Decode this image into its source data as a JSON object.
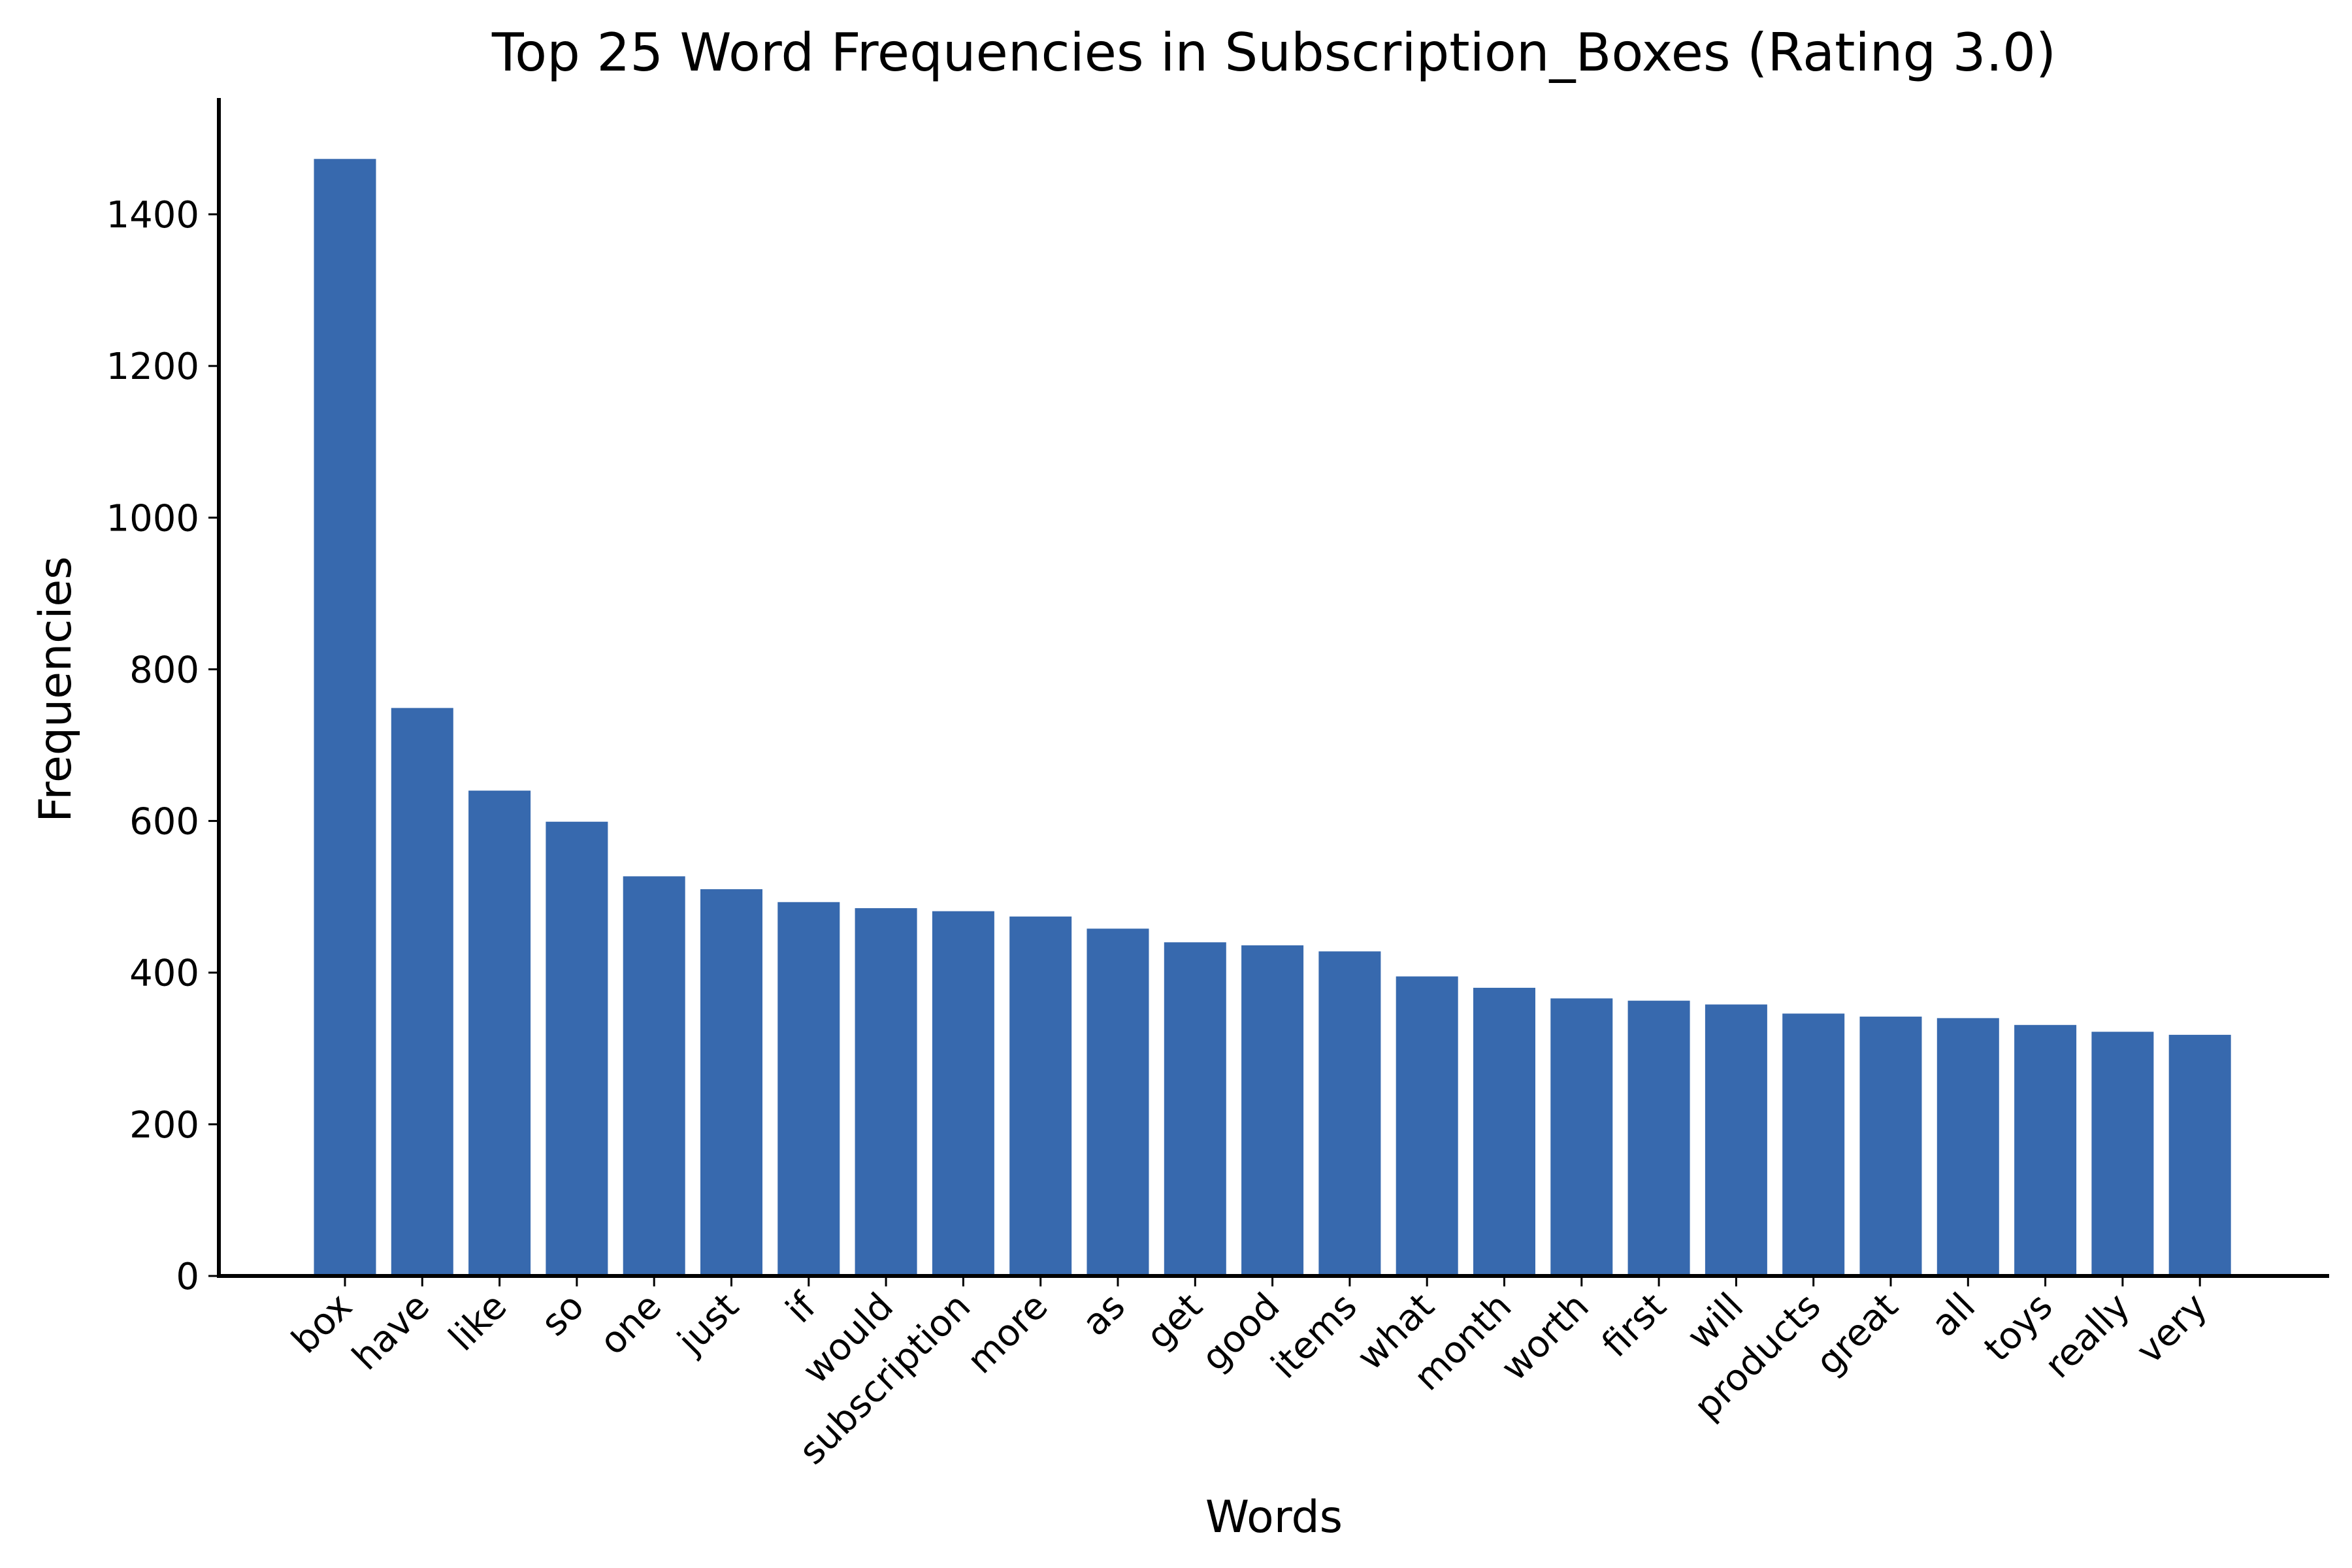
{
  "chart_data": {
    "type": "bar",
    "title": "Top 25 Word Frequencies in Subscription_Boxes (Rating 3.0)",
    "xlabel": "Words",
    "ylabel": "Frequencies",
    "categories": [
      "box",
      "have",
      "like",
      "so",
      "one",
      "just",
      "if",
      "would",
      "subscription",
      "more",
      "as",
      "get",
      "good",
      "items",
      "what",
      "month",
      "worth",
      "first",
      "will",
      "products",
      "great",
      "all",
      "toys",
      "really",
      "very"
    ],
    "values": [
      1473,
      749,
      640,
      599,
      527,
      510,
      493,
      485,
      481,
      474,
      458,
      440,
      436,
      428,
      395,
      380,
      366,
      363,
      358,
      346,
      342,
      340,
      331,
      322,
      318
    ],
    "yticks": [
      0,
      200,
      400,
      600,
      800,
      1000,
      1200,
      1400
    ],
    "ylim": [
      0,
      1550
    ],
    "bar_color": "#3769ae",
    "grid": false
  }
}
